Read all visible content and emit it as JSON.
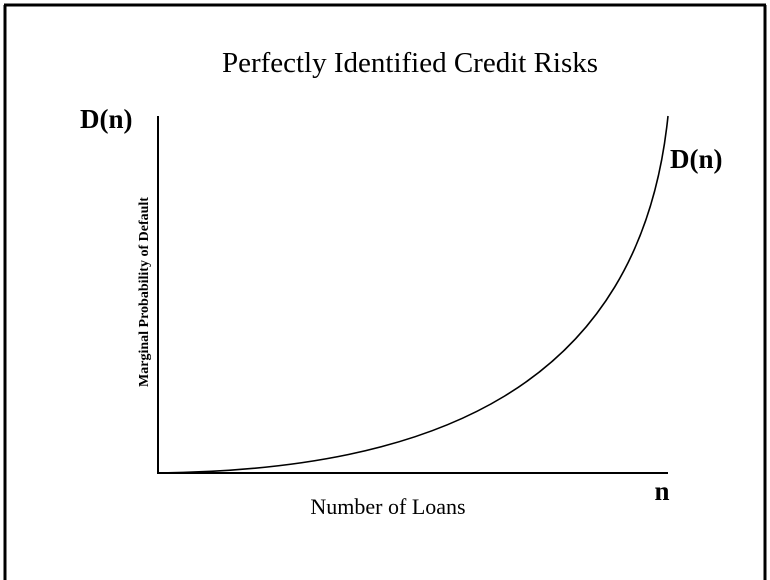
{
  "title": "Perfectly Identified Credit Risks",
  "y_axis": {
    "end_label": "D(n)",
    "title": "Marginal Probability of Default"
  },
  "x_axis": {
    "end_label": "n",
    "title": "Number of Loans"
  },
  "curve": {
    "label": "D(n)"
  }
}
